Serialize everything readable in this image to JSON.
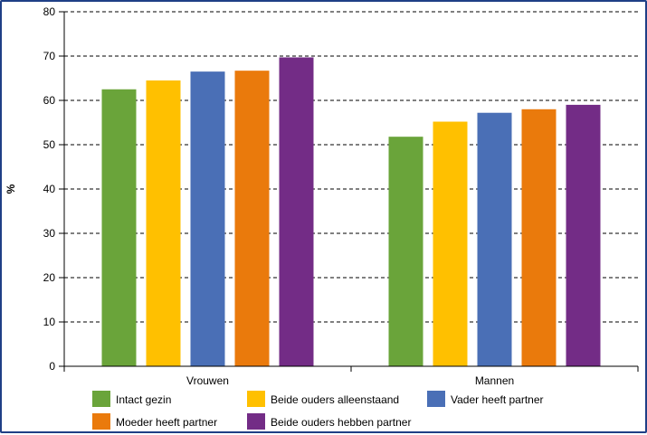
{
  "chart_data": {
    "type": "bar",
    "title": "",
    "xlabel": "",
    "ylabel": "%",
    "ylim": [
      0,
      80
    ],
    "yticks": [
      0,
      10,
      20,
      30,
      40,
      50,
      60,
      70,
      80
    ],
    "grid": "dashed-horizontal",
    "legend_position": "bottom",
    "categories": [
      "Vrouwen",
      "Mannen"
    ],
    "series": [
      {
        "name": "Intact gezin",
        "color": "#6aa43a",
        "values": [
          62.5,
          51.8
        ]
      },
      {
        "name": "Beide ouders alleenstaand",
        "color": "#ffc000",
        "values": [
          64.5,
          55.2
        ]
      },
      {
        "name": "Vader heeft partner",
        "color": "#4a6fb6",
        "values": [
          66.5,
          57.2
        ]
      },
      {
        "name": "Moeder heeft partner",
        "color": "#ea7a0c",
        "values": [
          66.7,
          58.0
        ]
      },
      {
        "name": "Beide ouders hebben partner",
        "color": "#732c86",
        "values": [
          69.7,
          59.0
        ]
      }
    ]
  }
}
